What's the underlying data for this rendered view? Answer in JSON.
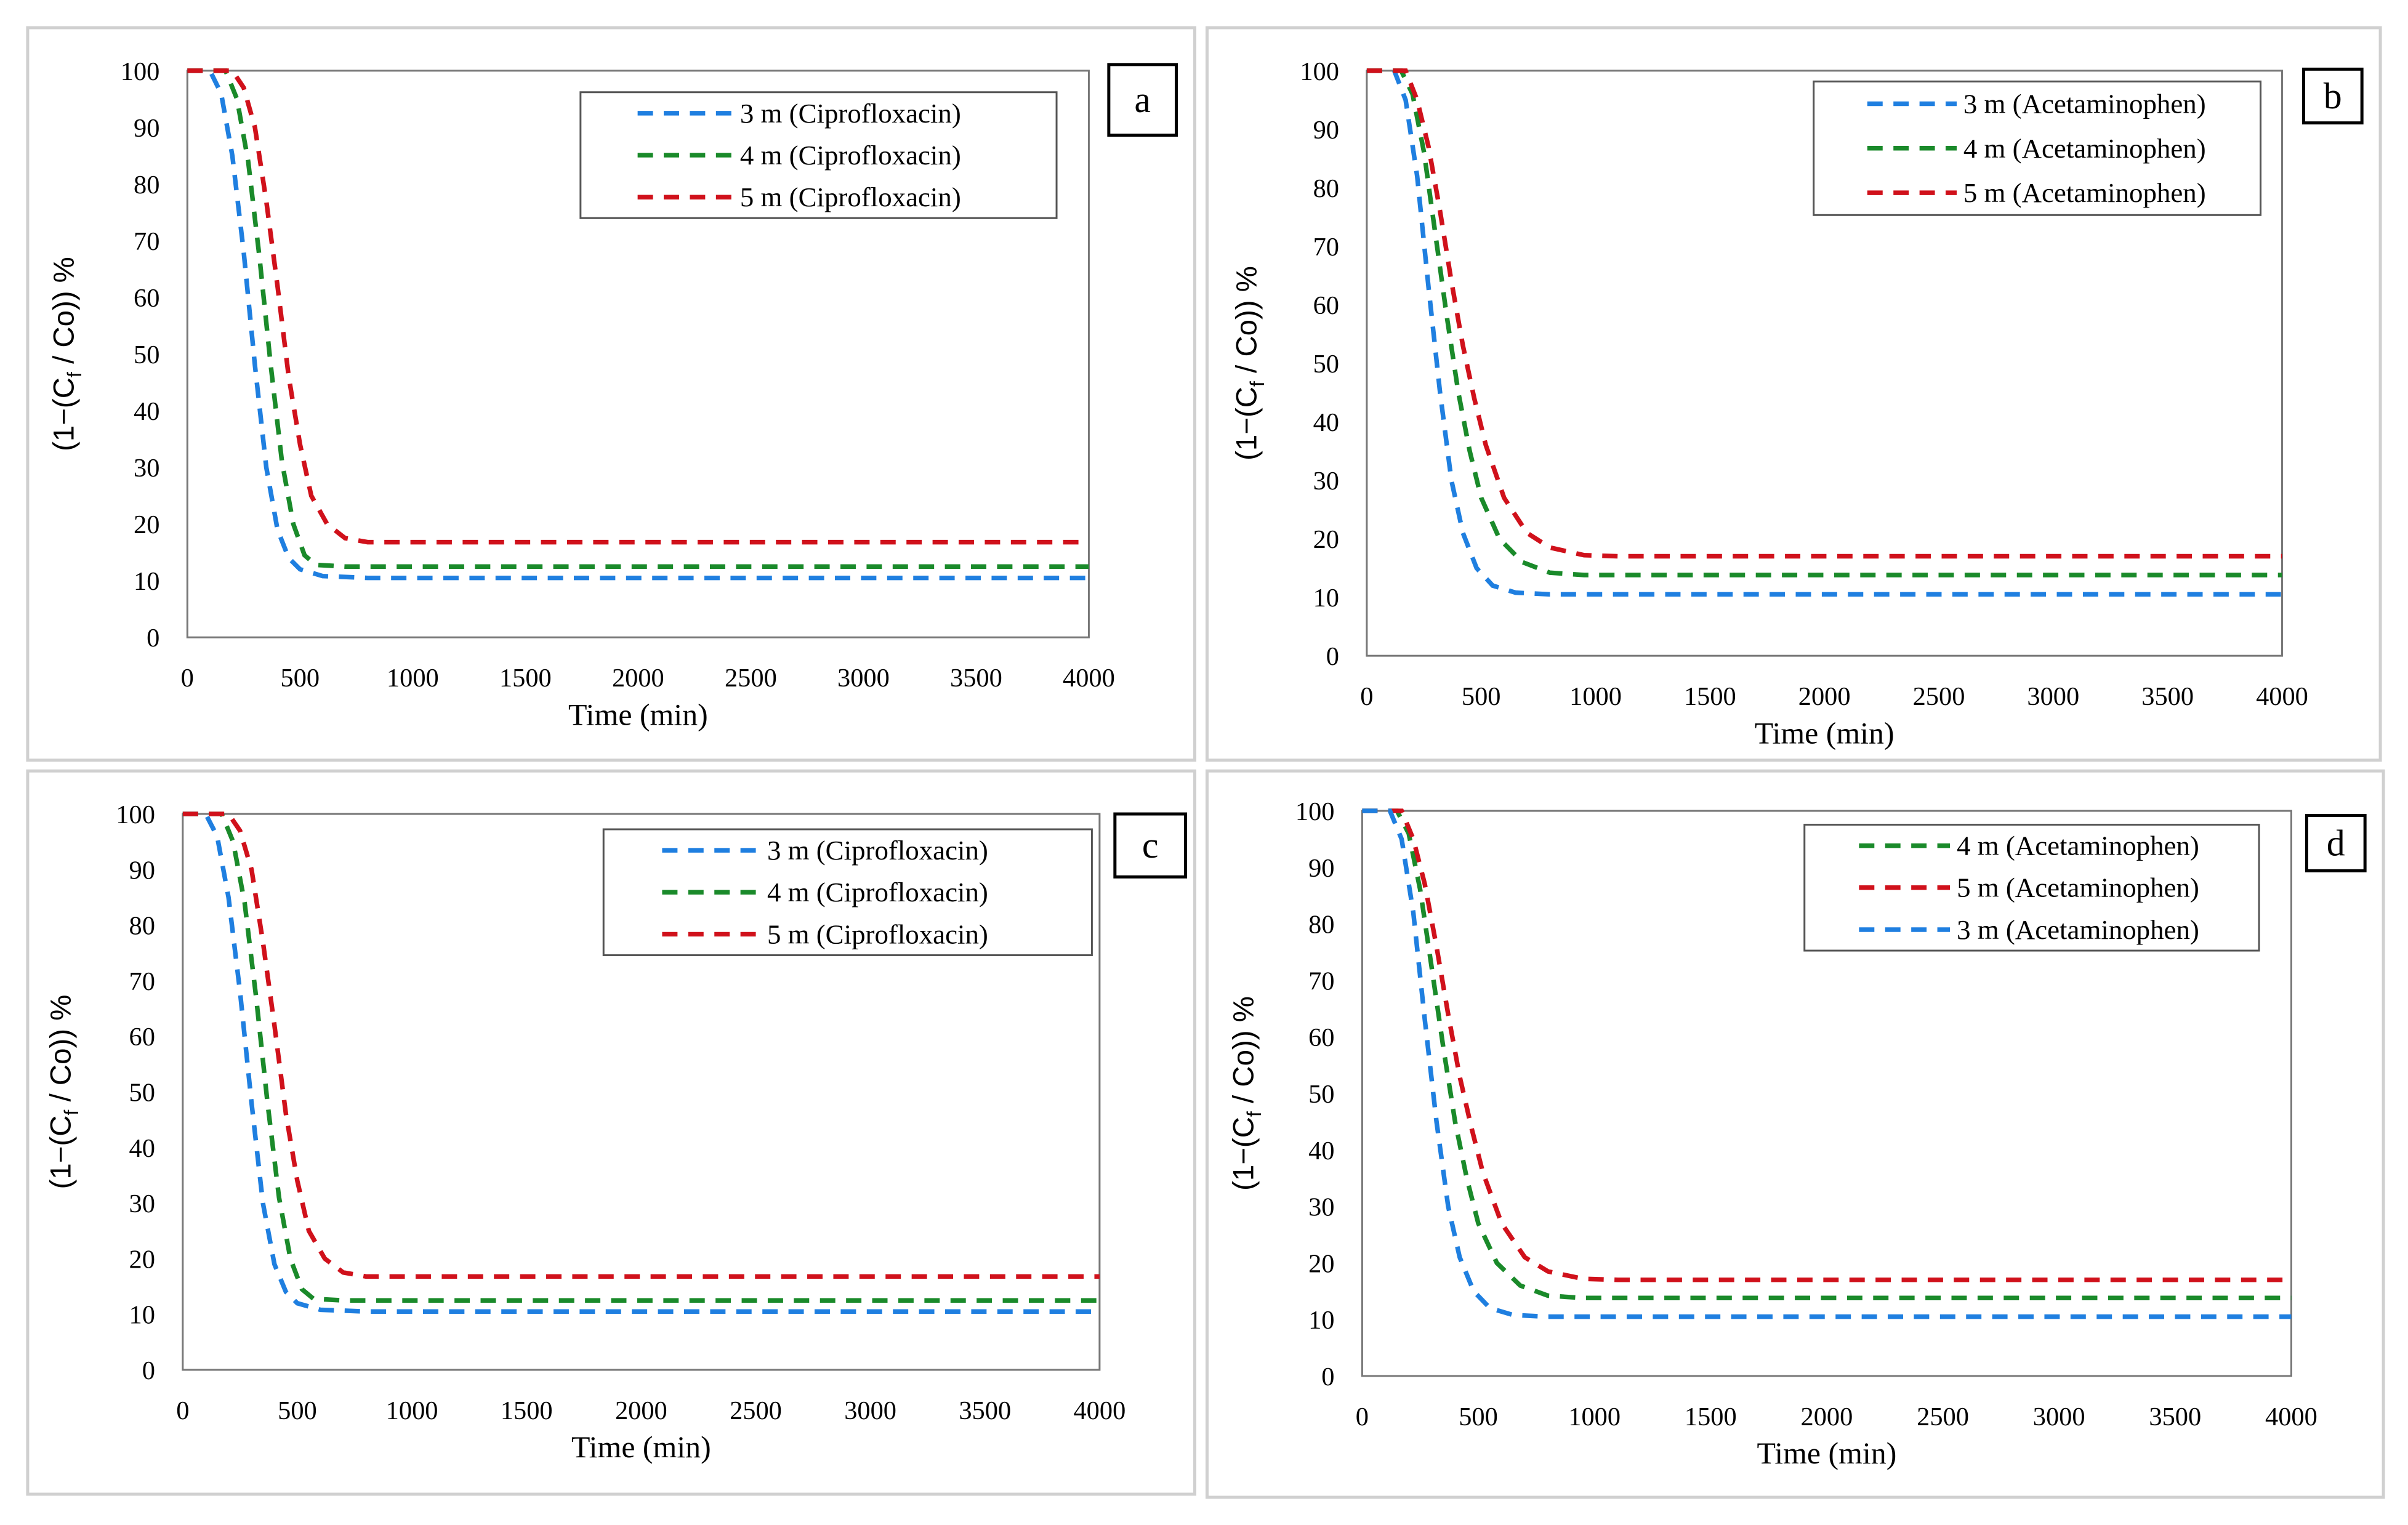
{
  "colors": {
    "3m": "#1f7fe0",
    "4m": "#1a8a2a",
    "5m": "#d0111b"
  },
  "chart_data": [
    {
      "panel_label": "a",
      "type": "line",
      "xlabel": "Time (min)",
      "ylabel_main": "(1−(C",
      "ylabel_sub": "f",
      "ylabel_end": " / Co))  %",
      "xlim": [
        0,
        4000
      ],
      "ylim": [
        0,
        100
      ],
      "xticks": [
        "0",
        "500",
        "1000",
        "1500",
        "2000",
        "2500",
        "3000",
        "3500",
        "4000"
      ],
      "yticks": [
        "0",
        "10",
        "20",
        "30",
        "40",
        "50",
        "60",
        "70",
        "80",
        "90",
        "100"
      ],
      "legend_position": "top-right",
      "series": [
        {
          "name": "3 m (Ciprofloxacin)",
          "key": "3m",
          "points": [
            [
              0,
              100
            ],
            [
              100,
              100
            ],
            [
              150,
              96
            ],
            [
              200,
              85
            ],
            [
              250,
              68
            ],
            [
              300,
              48
            ],
            [
              350,
              30
            ],
            [
              400,
              19
            ],
            [
              450,
              14
            ],
            [
              500,
              12
            ],
            [
              600,
              10.8
            ],
            [
              800,
              10.5
            ],
            [
              4000,
              10.5
            ]
          ]
        },
        {
          "name": "4 m (Ciprofloxacin)",
          "key": "4m",
          "points": [
            [
              0,
              100
            ],
            [
              170,
              100
            ],
            [
              220,
              95
            ],
            [
              270,
              84
            ],
            [
              320,
              67
            ],
            [
              370,
              48
            ],
            [
              420,
              31
            ],
            [
              470,
              20
            ],
            [
              520,
              14.5
            ],
            [
              570,
              12.8
            ],
            [
              700,
              12.5
            ],
            [
              4000,
              12.5
            ]
          ]
        },
        {
          "name": "5 m (Ciprofloxacin)",
          "key": "5m",
          "points": [
            [
              0,
              100
            ],
            [
              200,
              100
            ],
            [
              250,
              97
            ],
            [
              300,
              90
            ],
            [
              350,
              77
            ],
            [
              400,
              62
            ],
            [
              450,
              46
            ],
            [
              500,
              34
            ],
            [
              550,
              25
            ],
            [
              620,
              20
            ],
            [
              700,
              17.5
            ],
            [
              800,
              16.8
            ],
            [
              4000,
              16.8
            ]
          ]
        }
      ]
    },
    {
      "panel_label": "b",
      "type": "line",
      "xlabel": "Time (min)",
      "ylabel_main": "(1−(C",
      "ylabel_sub": "f",
      "ylabel_end": " / Co))  %",
      "xlim": [
        0,
        4000
      ],
      "ylim": [
        0,
        100
      ],
      "xticks": [
        "0",
        "500",
        "1000",
        "1500",
        "2000",
        "2500",
        "3000",
        "3500",
        "4000"
      ],
      "yticks": [
        "0",
        "10",
        "20",
        "30",
        "40",
        "50",
        "60",
        "70",
        "80",
        "90",
        "100"
      ],
      "legend_position": "top-right",
      "series": [
        {
          "name": "3 m (Acetaminophen)",
          "key": "3m",
          "points": [
            [
              0,
              100
            ],
            [
              120,
              100
            ],
            [
              170,
              95
            ],
            [
              220,
              82
            ],
            [
              270,
              63
            ],
            [
              320,
              45
            ],
            [
              370,
              30
            ],
            [
              420,
              21
            ],
            [
              480,
              15
            ],
            [
              550,
              12
            ],
            [
              650,
              10.8
            ],
            [
              800,
              10.5
            ],
            [
              4000,
              10.5
            ]
          ]
        },
        {
          "name": "4 m (Acetaminophen)",
          "key": "4m",
          "points": [
            [
              0,
              100
            ],
            [
              150,
              100
            ],
            [
              200,
              96
            ],
            [
              250,
              86
            ],
            [
              300,
              72
            ],
            [
              350,
              58
            ],
            [
              400,
              45
            ],
            [
              450,
              35
            ],
            [
              500,
              27
            ],
            [
              580,
              20
            ],
            [
              680,
              16
            ],
            [
              800,
              14.2
            ],
            [
              950,
              13.8
            ],
            [
              4000,
              13.8
            ]
          ]
        },
        {
          "name": "5 m (Acetaminophen)",
          "key": "5m",
          "points": [
            [
              0,
              100
            ],
            [
              170,
              100
            ],
            [
              220,
              95
            ],
            [
              270,
              87
            ],
            [
              320,
              76
            ],
            [
              370,
              64
            ],
            [
              420,
              53
            ],
            [
              470,
              44
            ],
            [
              520,
              36
            ],
            [
              600,
              27
            ],
            [
              700,
              21
            ],
            [
              800,
              18.5
            ],
            [
              950,
              17.2
            ],
            [
              1100,
              17
            ],
            [
              4000,
              17
            ]
          ]
        }
      ]
    },
    {
      "panel_label": "c",
      "type": "line",
      "xlabel": "Time (min)",
      "ylabel_main": "(1−(C",
      "ylabel_sub": "f",
      "ylabel_end": " / Co))  %",
      "xlim": [
        0,
        4000
      ],
      "ylim": [
        0,
        100
      ],
      "xticks": [
        "0",
        "500",
        "1000",
        "1500",
        "2000",
        "2500",
        "3000",
        "3500",
        "4000"
      ],
      "yticks": [
        "0",
        "10",
        "20",
        "30",
        "40",
        "50",
        "60",
        "70",
        "80",
        "90",
        "100"
      ],
      "legend_position": "top-right",
      "series": [
        {
          "name": "3 m (Ciprofloxacin)",
          "key": "3m",
          "points": [
            [
              0,
              100
            ],
            [
              100,
              100
            ],
            [
              150,
              96
            ],
            [
              200,
              85
            ],
            [
              250,
              68
            ],
            [
              300,
              48
            ],
            [
              350,
              30
            ],
            [
              400,
              19
            ],
            [
              450,
              14
            ],
            [
              500,
              12
            ],
            [
              600,
              10.8
            ],
            [
              800,
              10.5
            ],
            [
              4000,
              10.5
            ]
          ]
        },
        {
          "name": "4 m (Ciprofloxacin)",
          "key": "4m",
          "points": [
            [
              0,
              100
            ],
            [
              170,
              100
            ],
            [
              220,
              95
            ],
            [
              270,
              84
            ],
            [
              320,
              67
            ],
            [
              370,
              48
            ],
            [
              420,
              31
            ],
            [
              470,
              20
            ],
            [
              520,
              14.5
            ],
            [
              570,
              12.8
            ],
            [
              700,
              12.5
            ],
            [
              4000,
              12.5
            ]
          ]
        },
        {
          "name": "5 m (Ciprofloxacin)",
          "key": "5m",
          "points": [
            [
              0,
              100
            ],
            [
              200,
              100
            ],
            [
              250,
              97
            ],
            [
              300,
              90
            ],
            [
              350,
              77
            ],
            [
              400,
              62
            ],
            [
              450,
              46
            ],
            [
              500,
              34
            ],
            [
              550,
              25
            ],
            [
              620,
              20
            ],
            [
              700,
              17.5
            ],
            [
              800,
              16.8
            ],
            [
              4000,
              16.8
            ]
          ]
        }
      ]
    },
    {
      "panel_label": "d",
      "type": "line",
      "xlabel": "Time (min)",
      "ylabel_main": "(1−(C",
      "ylabel_sub": "f",
      "ylabel_end": " / Co))  %",
      "xlim": [
        0,
        4000
      ],
      "ylim": [
        0,
        100
      ],
      "xticks": [
        "0",
        "500",
        "1000",
        "1500",
        "2000",
        "2500",
        "3000",
        "3500",
        "4000"
      ],
      "yticks": [
        "0",
        "10",
        "20",
        "30",
        "40",
        "50",
        "60",
        "70",
        "80",
        "90",
        "100"
      ],
      "legend_position": "top-right",
      "series": [
        {
          "name": "4 m (Acetaminophen)",
          "key": "4m",
          "points": [
            [
              0,
              100
            ],
            [
              150,
              100
            ],
            [
              200,
              96
            ],
            [
              250,
              86
            ],
            [
              300,
              72
            ],
            [
              350,
              58
            ],
            [
              400,
              45
            ],
            [
              450,
              35
            ],
            [
              500,
              27
            ],
            [
              580,
              20
            ],
            [
              680,
              16
            ],
            [
              800,
              14.2
            ],
            [
              950,
              13.8
            ],
            [
              4000,
              13.8
            ]
          ]
        },
        {
          "name": "5 m (Acetaminophen)",
          "key": "5m",
          "points": [
            [
              0,
              100
            ],
            [
              170,
              100
            ],
            [
              220,
              95
            ],
            [
              270,
              87
            ],
            [
              320,
              76
            ],
            [
              370,
              64
            ],
            [
              420,
              53
            ],
            [
              470,
              44
            ],
            [
              520,
              36
            ],
            [
              600,
              27
            ],
            [
              700,
              21
            ],
            [
              800,
              18.5
            ],
            [
              950,
              17.2
            ],
            [
              1100,
              17
            ],
            [
              4000,
              17
            ]
          ]
        },
        {
          "name": "3 m (Acetaminophen)",
          "key": "3m",
          "points": [
            [
              0,
              100
            ],
            [
              120,
              100
            ],
            [
              170,
              95
            ],
            [
              220,
              82
            ],
            [
              270,
              63
            ],
            [
              320,
              45
            ],
            [
              370,
              30
            ],
            [
              420,
              21
            ],
            [
              480,
              15
            ],
            [
              550,
              12
            ],
            [
              650,
              10.8
            ],
            [
              800,
              10.5
            ],
            [
              4000,
              10.5
            ]
          ]
        }
      ]
    }
  ]
}
